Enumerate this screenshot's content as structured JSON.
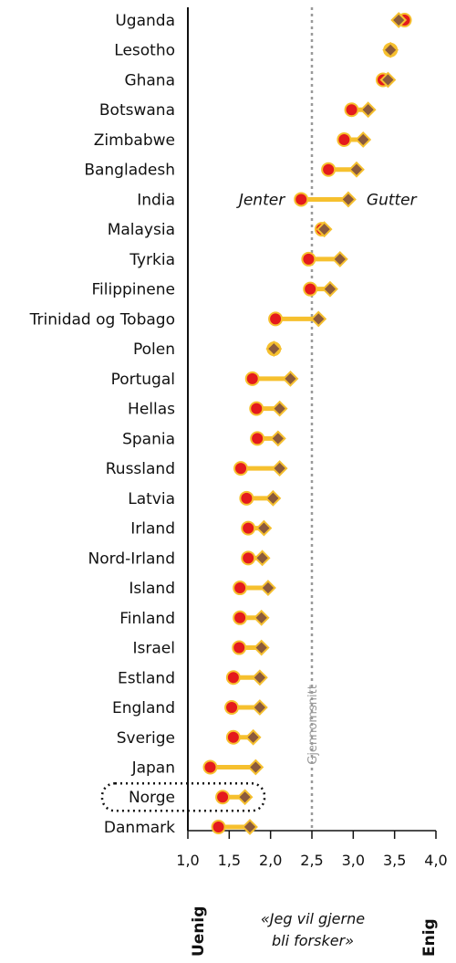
{
  "chart_data": {
    "type": "dot",
    "orientation": "horizontal",
    "categories": [
      "Uganda",
      "Lesotho",
      "Ghana",
      "Botswana",
      "Zimbabwe",
      "Bangladesh",
      "India",
      "Malaysia",
      "Tyrkia",
      "Filippinene",
      "Trinidad og Tobago",
      "Polen",
      "Portugal",
      "Hellas",
      "Spania",
      "Russland",
      "Latvia",
      "Irland",
      "Nord-Irland",
      "Island",
      "Finland",
      "Israel",
      "Estland",
      "England",
      "Sverige",
      "Japan",
      "Norge",
      "Danmark"
    ],
    "series": [
      {
        "name": "Jenter",
        "marker": "circle",
        "color": "#e41a1c",
        "values": [
          3.62,
          3.45,
          3.36,
          2.98,
          2.89,
          2.7,
          2.37,
          2.62,
          2.46,
          2.48,
          2.06,
          2.04,
          1.78,
          1.83,
          1.84,
          1.64,
          1.71,
          1.73,
          1.73,
          1.63,
          1.63,
          1.62,
          1.55,
          1.53,
          1.55,
          1.27,
          1.42,
          1.37
        ]
      },
      {
        "name": "Gutter",
        "marker": "diamond",
        "color": "#8b5a3c",
        "values": [
          3.55,
          3.45,
          3.42,
          3.18,
          3.12,
          3.04,
          2.94,
          2.65,
          2.84,
          2.72,
          2.58,
          2.04,
          2.24,
          2.11,
          2.09,
          2.11,
          2.03,
          1.92,
          1.9,
          1.97,
          1.89,
          1.89,
          1.87,
          1.87,
          1.79,
          1.82,
          1.69,
          1.75
        ]
      }
    ],
    "connector_color": "#f6c02e",
    "x_ticks": [
      "1,0",
      "1,5",
      "2,0",
      "2,5",
      "3,0",
      "3,5",
      "4,0"
    ],
    "xlim": [
      1.0,
      4.0
    ],
    "average": {
      "value": 2.5,
      "label": "Gjennomsnitt"
    },
    "xlabel_lines": [
      "«Jeg vil gjerne",
      "bli forsker»"
    ],
    "left_end_label": "Uenig",
    "right_end_label": "Enig",
    "highlight": "Norge"
  }
}
